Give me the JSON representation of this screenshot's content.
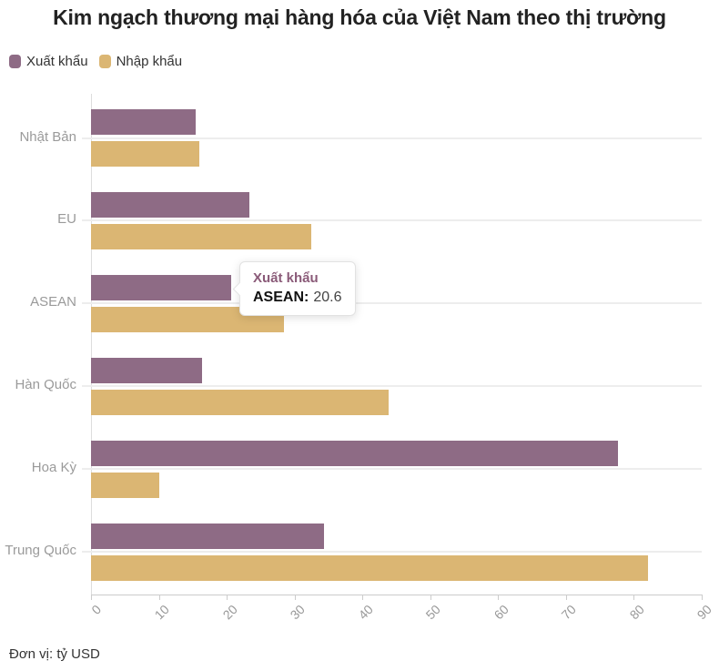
{
  "title": "Kim ngạch thương mại hàng hóa của Việt Nam theo thị trường",
  "legend": {
    "export": "Xuất khẩu",
    "import": "Nhập khẩu"
  },
  "tooltip": {
    "series": "Xuất khẩu",
    "label": "ASEAN:",
    "value": "20.6"
  },
  "footnote": "Đơn vị: tỷ USD",
  "colors": {
    "export": "#8e6b85",
    "import": "#dbb673",
    "tooltip_title": "#8a5a78",
    "axis_label": "#999999",
    "gridline": "#ededed"
  },
  "chart_data": {
    "type": "bar",
    "orientation": "horizontal",
    "title": "Kim ngạch thương mại hàng hóa của Việt Nam theo thị trường",
    "unit": "tỷ USD",
    "categories": [
      "Nhật Bản",
      "EU",
      "ASEAN",
      "Hàn Quốc",
      "Hoa Kỳ",
      "Trung Quốc"
    ],
    "series": [
      {
        "name": "Xuất khẩu",
        "color": "#8e6b85",
        "values": [
          15.4,
          23.3,
          20.6,
          16.4,
          77.7,
          34.3
        ]
      },
      {
        "name": "Nhập khẩu",
        "color": "#dbb673",
        "values": [
          15.9,
          32.4,
          28.5,
          43.8,
          10.0,
          82.1
        ]
      }
    ],
    "xlim": [
      0,
      90
    ],
    "x_ticks": [
      0,
      10,
      20,
      30,
      40,
      50,
      60,
      70,
      80,
      90
    ],
    "xlabel": "",
    "ylabel": "",
    "grid": "horizontal category lines only",
    "legend_position": "top-left",
    "annotations": [
      {
        "type": "tooltip",
        "series": "Xuất khẩu",
        "category": "ASEAN",
        "value": 20.6
      }
    ]
  }
}
